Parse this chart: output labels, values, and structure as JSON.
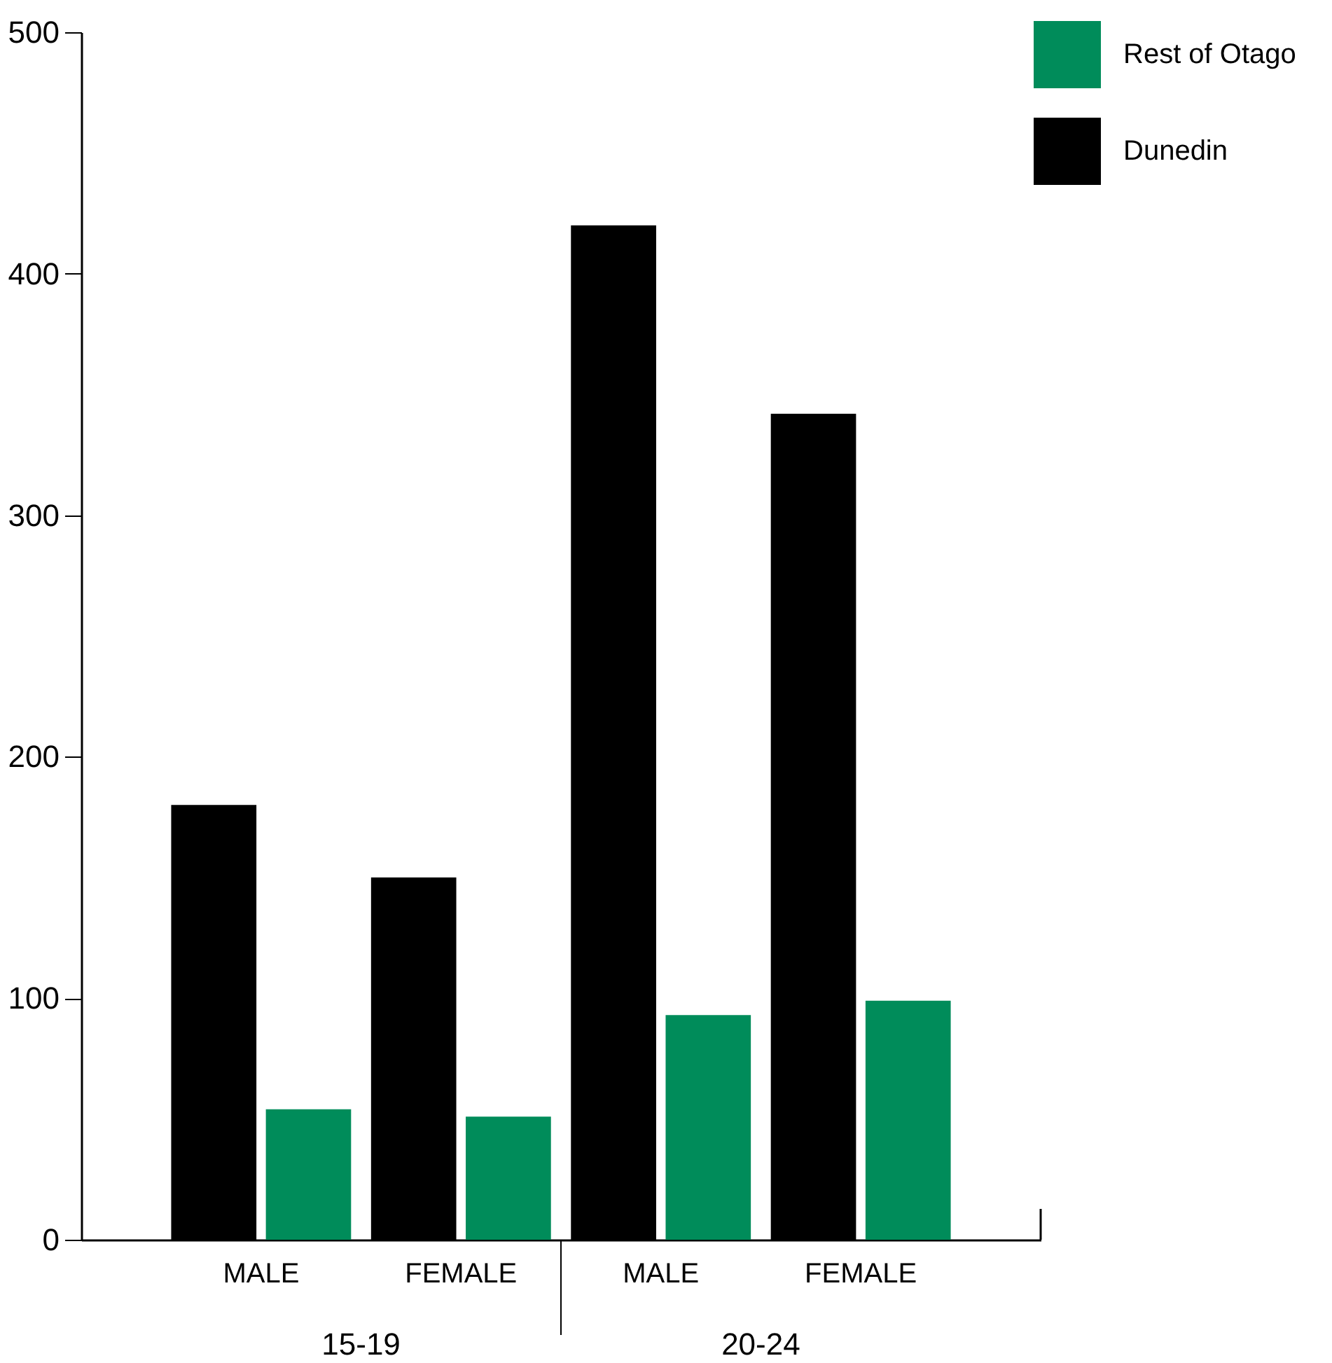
{
  "chart_data": {
    "type": "bar",
    "categories": [
      "MALE",
      "FEMALE",
      "MALE",
      "FEMALE"
    ],
    "series": [
      {
        "name": "Dunedin",
        "color": "#000000",
        "values": [
          180,
          150,
          420,
          342
        ]
      },
      {
        "name": "Rest of Otago",
        "color": "#008c5a",
        "values": [
          54,
          51,
          93,
          99
        ]
      }
    ],
    "annotations": [
      "15-19",
      "20-24"
    ],
    "ylim": [
      0,
      500
    ],
    "yticks": [
      0,
      100,
      200,
      300,
      400,
      500
    ],
    "grid": false,
    "legend": "top right"
  }
}
